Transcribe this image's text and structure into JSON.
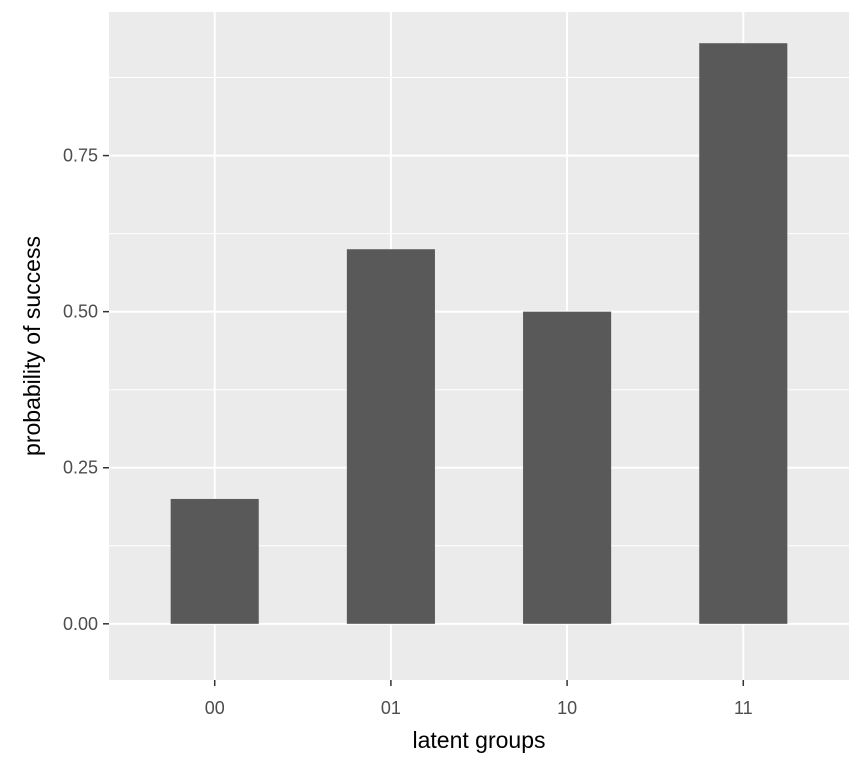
{
  "chart_data": {
    "type": "bar",
    "title": "",
    "xlabel": "latent groups",
    "ylabel": "probability of success",
    "categories": [
      "00",
      "01",
      "10",
      "11"
    ],
    "values": [
      0.2,
      0.6,
      0.5,
      0.93
    ],
    "ylim": [
      -0.09,
      0.98
    ],
    "yticks": [
      0.0,
      0.25,
      0.5,
      0.75
    ],
    "ytick_labels": [
      "0.00",
      "0.25",
      "0.50",
      "0.75"
    ],
    "grid": true,
    "legend": "none",
    "colors": {
      "bar": "#595959",
      "panel": "#ebebeb",
      "grid": "#ffffff",
      "tick": "#333333"
    }
  }
}
